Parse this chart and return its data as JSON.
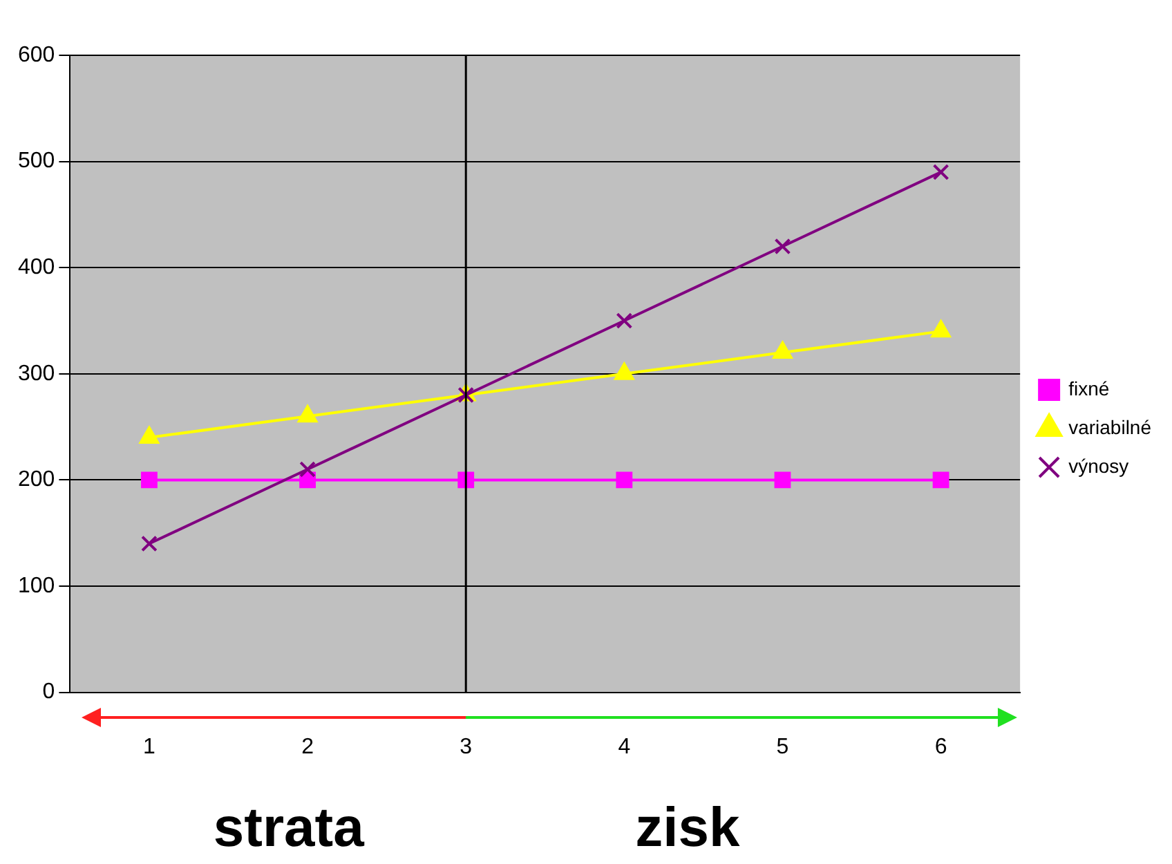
{
  "chart_data": {
    "type": "line",
    "categories": [
      "1",
      "2",
      "3",
      "4",
      "5",
      "6"
    ],
    "series": [
      {
        "name": "fixné",
        "color": "#ff00ff",
        "marker": "square",
        "values": [
          200,
          200,
          200,
          200,
          200,
          200
        ]
      },
      {
        "name": "variabilné",
        "color": "#ffff00",
        "marker": "triangle",
        "values": [
          240,
          260,
          280,
          300,
          320,
          340
        ]
      },
      {
        "name": "výnosy",
        "color": "#800080",
        "marker": "cross",
        "values": [
          140,
          210,
          280,
          350,
          420,
          490
        ]
      }
    ],
    "ylim": [
      0,
      600
    ],
    "yticks": [
      0,
      100,
      200,
      300,
      400,
      500,
      600
    ],
    "grid": "y",
    "legend": "right",
    "ref_lines": [
      {
        "axis": "x",
        "value": "3",
        "color": "#000000"
      }
    ],
    "annotations": [
      "strata",
      "zisk"
    ]
  }
}
